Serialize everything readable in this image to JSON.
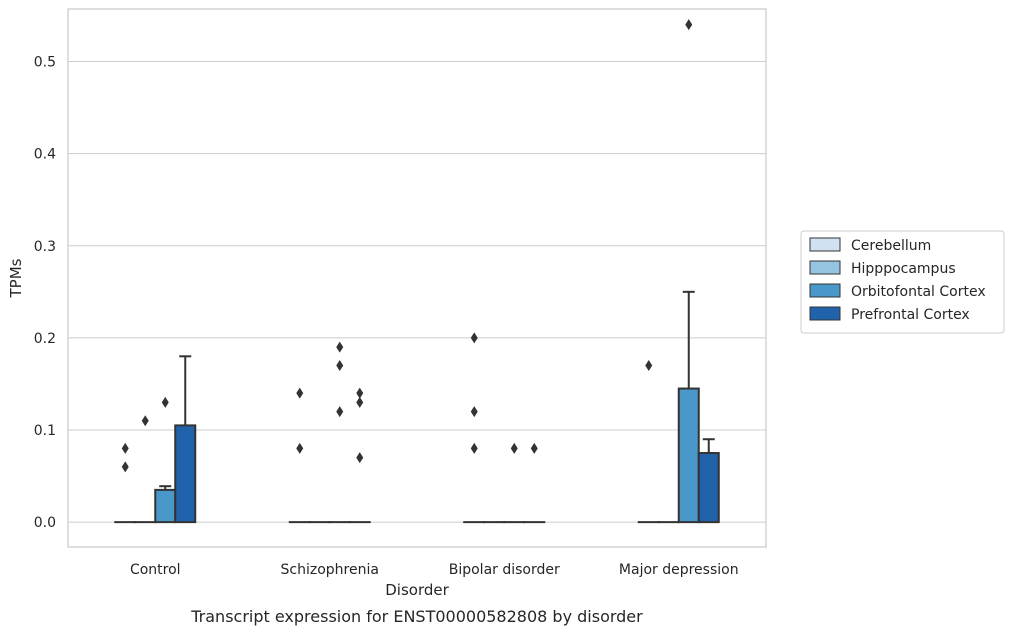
{
  "chart_data": {
    "type": "bar",
    "title": "",
    "caption": "Transcript expression for ENST00000582808 by disorder",
    "xlabel": "Disorder",
    "ylabel": "TPMs",
    "ylim": [
      -0.027,
      0.557
    ],
    "yticks": [
      0.0,
      0.1,
      0.2,
      0.3,
      0.4,
      0.5
    ],
    "ytick_labels": [
      "0.0",
      "0.1",
      "0.2",
      "0.3",
      "0.4",
      "0.5"
    ],
    "grid": true,
    "legend_position": "right",
    "categories": [
      "Control",
      "Schizophrenia",
      "Bipolar disorder",
      "Major depression"
    ],
    "series": [
      {
        "name": "Cerebellum",
        "color": "#d0e1f2",
        "values": [
          0.0,
          0.0,
          0.0,
          0.0
        ],
        "whisker_high": [
          0.0,
          0.0,
          0.0,
          0.0
        ],
        "outliers": [
          [
            0.06,
            0.08
          ],
          [
            0.08,
            0.14
          ],
          [
            0.08,
            0.12,
            0.2
          ],
          [
            0.17
          ]
        ]
      },
      {
        "name": "Hipppocampus",
        "color": "#94c4df",
        "values": [
          0.0,
          0.0,
          0.0,
          0.0
        ],
        "whisker_high": [
          0.0,
          0.0,
          0.0,
          0.0
        ],
        "outliers": [
          [
            0.11
          ],
          [],
          [],
          []
        ]
      },
      {
        "name": "Orbitofontal Cortex",
        "color": "#4a98c9",
        "values": [
          0.035,
          0.0,
          0.0,
          0.145
        ],
        "whisker_high": [
          0.039,
          0.0,
          0.0,
          0.25
        ],
        "outliers": [
          [
            0.13
          ],
          [
            0.12,
            0.17,
            0.19
          ],
          [
            0.08
          ],
          [
            0.54
          ]
        ]
      },
      {
        "name": "Prefrontal Cortex",
        "color": "#2163aa",
        "values": [
          0.105,
          0.0,
          0.0,
          0.075
        ],
        "whisker_high": [
          0.18,
          0.0,
          0.0,
          0.09
        ],
        "outliers": [
          [],
          [
            0.07,
            0.13,
            0.14
          ],
          [
            0.08
          ],
          []
        ]
      }
    ]
  }
}
